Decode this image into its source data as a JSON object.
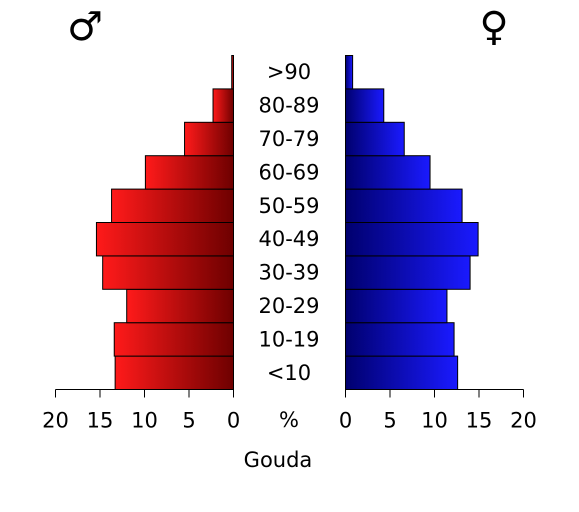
{
  "chart_data": {
    "type": "bar",
    "orientation": "horizontal",
    "layout": "population-pyramid",
    "title": "Gouda",
    "unit_label": "%",
    "categories": [
      "<10",
      "10-19",
      "20-29",
      "30-39",
      "40-49",
      "50-59",
      "60-69",
      "70-79",
      "80-89",
      ">90"
    ],
    "series": [
      {
        "name": "♂",
        "side": "left",
        "values": [
          13.3,
          13.4,
          12.0,
          14.7,
          15.4,
          13.7,
          9.9,
          5.5,
          2.3,
          0.2
        ]
      },
      {
        "name": "♀",
        "side": "right",
        "values": [
          12.6,
          12.2,
          11.4,
          14.0,
          14.9,
          13.1,
          9.5,
          6.6,
          4.3,
          0.8
        ]
      }
    ],
    "xlim": [
      0,
      20
    ],
    "xticks": [
      0,
      5,
      10,
      15,
      20
    ],
    "grid": false,
    "legend": "symbols above each side",
    "colors": {
      "male_light": "#ff1a1a",
      "male_dark": "#6e0000",
      "female_light": "#1a1aff",
      "female_dark": "#00006e",
      "bar_stroke": "#000000"
    }
  }
}
